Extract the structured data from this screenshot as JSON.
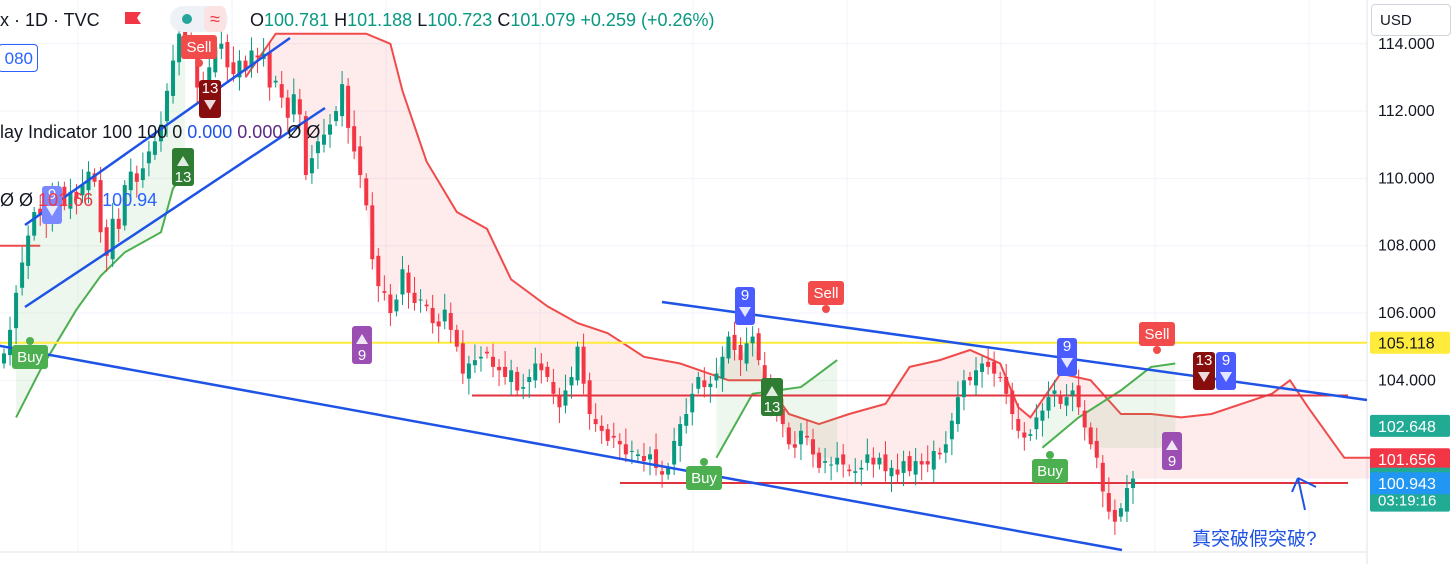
{
  "header": {
    "symbol": "x · 1D · TVC",
    "open_label": "O",
    "open": "100.781",
    "high_label": "H",
    "high": "101.188",
    "low_label": "L",
    "low": "100.723",
    "close_label": "C",
    "close": "101.079",
    "change": "+0.259 (+0.26%)",
    "wave_icon": "≈"
  },
  "currency": "USD",
  "value_box": "080",
  "indicator1": {
    "name": "lay Indicator",
    "p1": "100",
    "p2": "100",
    "p3": "0",
    "v1": "0.000",
    "v2": "0.000",
    "e1": "Ø",
    "e2": "Ø"
  },
  "indicator2": {
    "e1": "Ø",
    "e2": "Ø",
    "v1": "101.66",
    "v2": "100.94"
  },
  "annotation": "真突破假突破?",
  "colors": {
    "up": "#089981",
    "down": "#f23645",
    "channel": "#1e53e5",
    "yellow": "#ffeb3b",
    "red_line": "#e0333f",
    "stop_red": "#f04b4b",
    "stop_green": "#4caf50"
  },
  "chart_data": {
    "type": "candlestick",
    "ylim": [
      98.9,
      115.3
    ],
    "y_ticks": [
      "114.000",
      "112.000",
      "110.000",
      "108.000",
      "106.000",
      "104.000"
    ],
    "y_tick_values": [
      114,
      112,
      110,
      108,
      106,
      104
    ],
    "price_labels": [
      {
        "text": "105.118",
        "value": 105.118,
        "color": "#ffeb3b",
        "text_color": "#131722"
      },
      {
        "text": "102.648",
        "value": 102.648,
        "color": "#22ab94",
        "text_color": "#ffffff"
      },
      {
        "text": "101.656",
        "value": 101.656,
        "color": "#f23645",
        "text_color": "#ffffff"
      },
      {
        "text": "101.079",
        "value": 101.079,
        "color": "#22ab94",
        "text_color": "#ffffff",
        "sub": "03:19:16"
      },
      {
        "text": "100.943",
        "value": 100.943,
        "color": "#2196f3",
        "text_color": "#ffffff"
      }
    ],
    "n_bars": 215,
    "close_series": [
      104.8,
      105.5,
      106.6,
      107.5,
      108.3,
      109.0,
      108.9,
      108.7,
      109.4,
      109.6,
      109.2,
      109.6,
      109.4,
      109.8,
      110.2,
      109.9,
      108.4,
      107.7,
      108.8,
      108.5,
      109.8,
      110.2,
      109.9,
      110.3,
      110.8,
      111.1,
      111.6,
      112.6,
      113.5,
      114.3,
      113.8,
      113.9,
      112.7,
      112.2,
      113.3,
      113.9,
      114.0,
      113.3,
      113.1,
      113.5,
      113.2,
      113.8,
      113.6,
      113.7,
      112.7,
      112.9,
      112.4,
      111.8,
      112.5,
      111.9,
      110.1,
      110.6,
      111.1,
      111.3,
      111.6,
      112.0,
      112.8,
      111.5,
      110.8,
      110.1,
      109.2,
      107.6,
      106.8,
      106.6,
      106.0,
      106.4,
      107.3,
      106.6,
      106.3,
      106.4,
      106.2,
      105.7,
      105.6,
      106.1,
      105.5,
      105.0,
      104.2,
      104.5,
      104.6,
      104.7,
      104.8,
      104.4,
      104.3,
      104.1,
      104.3,
      103.7,
      103.8,
      104.1,
      104.5,
      104.3,
      104.1,
      103.6,
      103.2,
      103.7,
      104.1,
      105.0,
      103.9,
      103.0,
      102.7,
      102.5,
      102.2,
      102.3,
      102.1,
      101.8,
      101.9,
      101.8,
      101.6,
      101.8,
      101.4,
      101.2,
      101.4,
      102.2,
      102.7,
      103.0,
      103.6,
      104.1,
      103.8,
      103.9,
      104.2,
      104.7,
      105.3,
      104.9,
      104.6,
      105.1,
      105.3,
      104.6,
      104.0,
      103.4,
      103.0,
      102.7,
      102.1,
      102.0,
      102.5,
      102.3,
      101.8,
      101.4,
      101.6,
      101.5,
      101.7,
      101.5,
      101.3,
      101.3,
      101.4,
      101.8,
      101.5,
      101.7,
      101.3,
      101.4,
      101.2,
      101.6,
      101.3,
      101.6,
      101.5,
      101.5,
      101.9,
      101.8,
      102.1,
      102.8,
      103.5,
      104.0,
      104.0,
      104.3,
      104.5,
      104.4,
      104.2,
      104.1,
      103.6,
      103.0,
      102.5,
      102.3,
      102.4,
      102.9,
      103.1,
      103.5,
      103.7,
      103.3,
      103.5,
      103.7,
      103.2,
      102.6,
      102.1,
      101.7,
      100.7,
      100.1,
      99.8,
      100.2,
      100.8,
      101.08
    ],
    "stop_line": {
      "red": [
        [
          0,
          108.0
        ],
        [
          3,
          108.0
        ],
        [
          3,
          108.0
        ],
        [
          40,
          113.0
        ],
        [
          45,
          114.3
        ],
        [
          60,
          114.3
        ],
        [
          64,
          114.0
        ],
        [
          66,
          112.6
        ],
        [
          70,
          110.5
        ],
        [
          75,
          109.0
        ],
        [
          80,
          108.5
        ],
        [
          84,
          107.0
        ],
        [
          90,
          106.2
        ],
        [
          95,
          105.7
        ],
        [
          100,
          105.4
        ],
        [
          106,
          104.7
        ],
        [
          112,
          104.5
        ],
        [
          120,
          104.0
        ],
        [
          126,
          104.0
        ],
        [
          130,
          103.0
        ],
        [
          135,
          102.7
        ],
        [
          140,
          103.0
        ],
        [
          146,
          103.3
        ],
        [
          150,
          104.4
        ],
        [
          155,
          104.6
        ],
        [
          160,
          104.9
        ],
        [
          165,
          104.5
        ],
        [
          168,
          103.2
        ],
        [
          170,
          102.9
        ],
        [
          175,
          104.2
        ],
        [
          180,
          104.0
        ],
        [
          185,
          103.0
        ],
        [
          190,
          103.0
        ],
        [
          195,
          102.9
        ],
        [
          200,
          103.0
        ],
        [
          210,
          103.6
        ],
        [
          213,
          104.0
        ],
        [
          216,
          103.2
        ],
        [
          222,
          101.7
        ],
        [
          228,
          101.7
        ]
      ],
      "green": [
        [
          2,
          102.9
        ],
        [
          6,
          104.3
        ],
        [
          12,
          106.1
        ],
        [
          16,
          107.1
        ],
        [
          20,
          107.8
        ],
        [
          26,
          108.4
        ],
        [
          28,
          109.7
        ],
        [
          30,
          110.2
        ]
      ],
      "green2": [
        [
          118,
          101.7
        ],
        [
          124,
          103.6
        ],
        [
          132,
          103.8
        ],
        [
          138,
          104.6
        ]
      ],
      "green3": [
        [
          172,
          102.0
        ],
        [
          178,
          102.9
        ],
        [
          185,
          103.7
        ],
        [
          190,
          104.4
        ],
        [
          194,
          104.5
        ]
      ]
    },
    "hlines": [
      {
        "value": 105.118,
        "x0": 0,
        "x1": 1367,
        "color": "#ffeb3b"
      },
      {
        "value": 103.55,
        "x0": 472,
        "x1": 1348,
        "color": "#e0333f"
      },
      {
        "value": 100.95,
        "x0": 620,
        "x1": 1348,
        "color": "#e0333f"
      }
    ],
    "trendlines": [
      {
        "p0": [
          25,
          225
        ],
        "p1": [
          290,
          38
        ]
      },
      {
        "p0": [
          25,
          307
        ],
        "p1": [
          325,
          108
        ]
      },
      {
        "p0": [
          -5,
          345
        ],
        "p1": [
          1122,
          550
        ]
      },
      {
        "p0": [
          662,
          302
        ],
        "p1": [
          1367,
          400
        ]
      }
    ],
    "markers": [
      {
        "text": "Sell",
        "x": 199,
        "y": 47,
        "bg": "#f24b4b",
        "pointer": "down"
      },
      {
        "text": "13",
        "x": 210,
        "y": 99,
        "bg": "#880e0e",
        "arrow": "down"
      },
      {
        "text": "13",
        "x": 183,
        "y": 167,
        "bg": "#2e7d32",
        "arrow": "up"
      },
      {
        "text": "9",
        "x": 52,
        "y": 205,
        "bg": "#7a89ff",
        "arrow": "down"
      },
      {
        "text": "Buy",
        "x": 30,
        "y": 357,
        "bg": "#4caf50",
        "pointer": "up"
      },
      {
        "text": "9",
        "x": 362,
        "y": 345,
        "bg": "#9c4fb3",
        "arrow": "up"
      },
      {
        "text": "9",
        "x": 745,
        "y": 306,
        "bg": "#4a5cff",
        "arrow": "down"
      },
      {
        "text": "Sell",
        "x": 826,
        "y": 293,
        "bg": "#f24b4b",
        "pointer": "down"
      },
      {
        "text": "13",
        "x": 772,
        "y": 397,
        "bg": "#2e7d32",
        "arrow": "up"
      },
      {
        "text": "Buy",
        "x": 704,
        "y": 478,
        "bg": "#4caf50",
        "pointer": "up"
      },
      {
        "text": "9",
        "x": 1067,
        "y": 357,
        "bg": "#4a5cff",
        "arrow": "down"
      },
      {
        "text": "Sell",
        "x": 1157,
        "y": 334,
        "bg": "#f24b4b",
        "pointer": "down"
      },
      {
        "text": "13",
        "x": 1204,
        "y": 371,
        "bg": "#880e0e",
        "arrow": "down"
      },
      {
        "text": "9",
        "x": 1226,
        "y": 371,
        "bg": "#4a5cff",
        "arrow": "down"
      },
      {
        "text": "Buy",
        "x": 1050,
        "y": 471,
        "bg": "#4caf50",
        "pointer": "up"
      },
      {
        "text": "9",
        "x": 1172,
        "y": 451,
        "bg": "#9c4fb3",
        "arrow": "up"
      }
    ]
  }
}
